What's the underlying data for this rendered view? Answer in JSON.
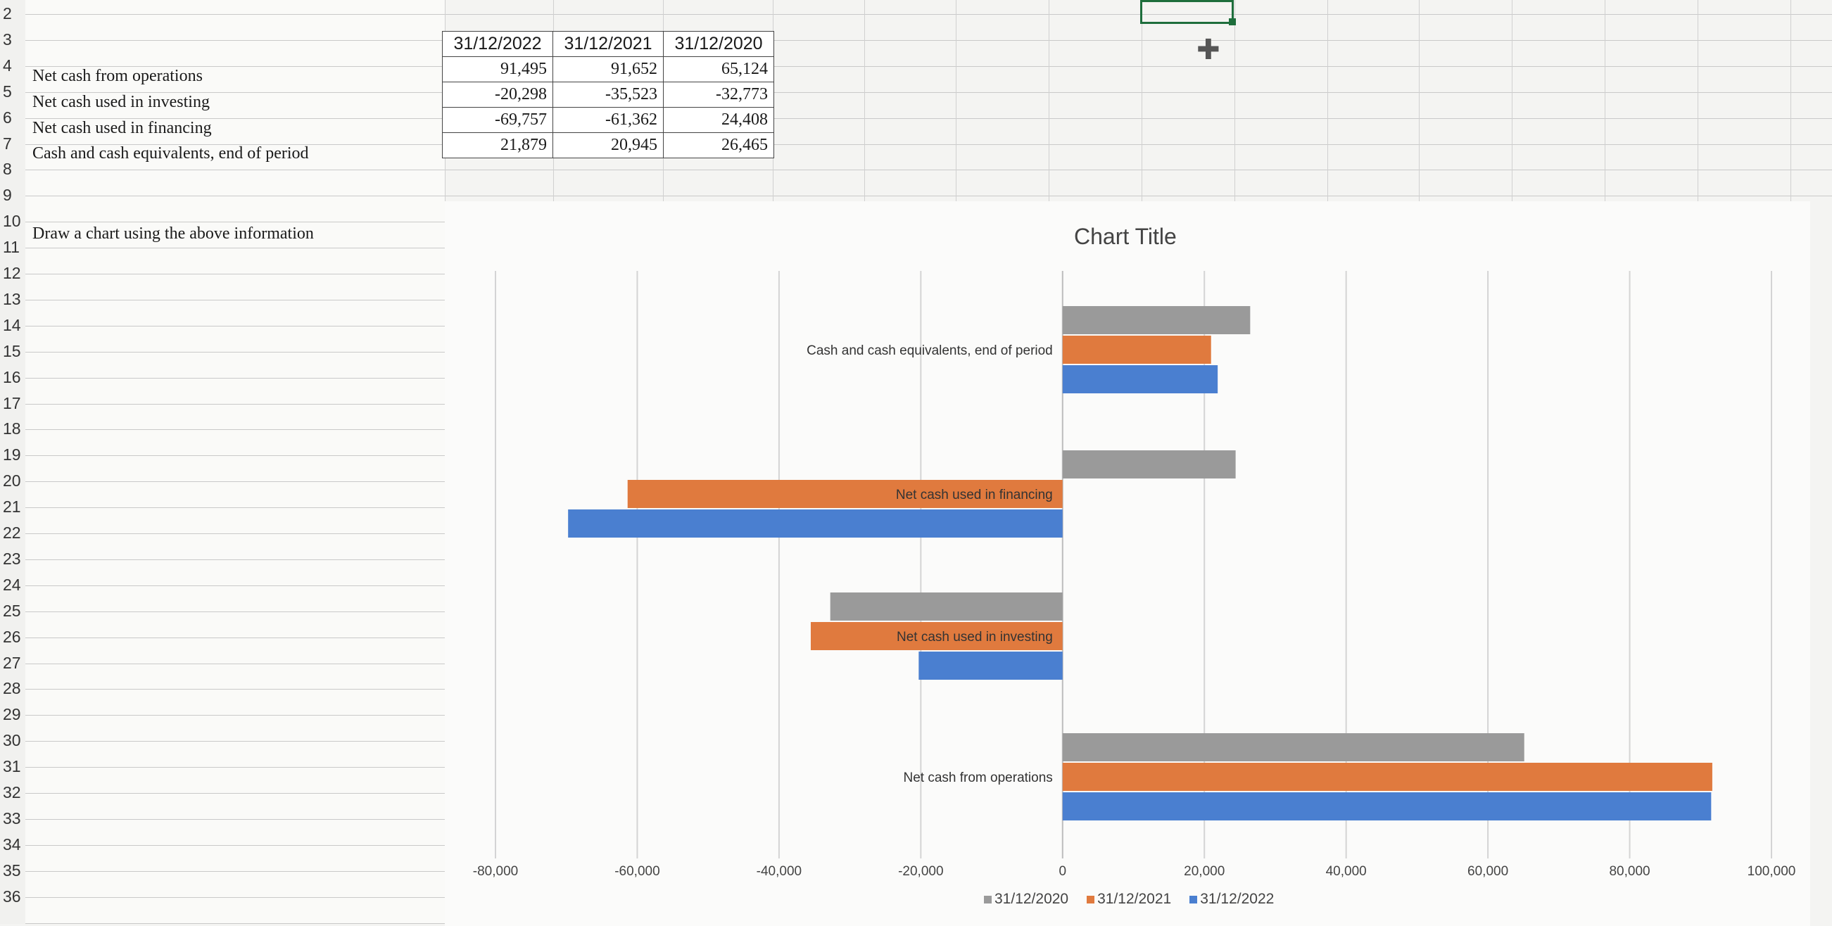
{
  "row_numbers": [
    "2",
    "3",
    "4",
    "5",
    "6",
    "7",
    "8",
    "9",
    "10",
    "11",
    "12",
    "13",
    "14",
    "15",
    "16",
    "17",
    "18",
    "19",
    "20",
    "21",
    "22",
    "23",
    "24",
    "25",
    "26",
    "27",
    "28",
    "29",
    "30",
    "31",
    "32",
    "33",
    "34",
    "35",
    "36"
  ],
  "cells": {
    "a4": "Net cash from operations",
    "a5": "Net cash used in investing",
    "a6": "Net cash used in financing",
    "a7": "Cash and cash equivalents, end of period",
    "a10": "Draw a chart using the above information"
  },
  "table": {
    "headers": [
      "31/12/2022",
      "31/12/2021",
      "31/12/2020"
    ],
    "rows": [
      [
        "91,495",
        "91,652",
        "65,124"
      ],
      [
        "-20,298",
        "-35,523",
        "-32,773"
      ],
      [
        "-69,757",
        "-61,362",
        "24,408"
      ],
      [
        "21,879",
        "20,945",
        "26,465"
      ]
    ]
  },
  "chart_data": {
    "type": "bar",
    "orientation": "horizontal",
    "title": "Chart Title",
    "categories": [
      "Net cash from operations",
      "Net cash used in investing",
      "Net cash used in financing",
      "Cash and cash equivalents, end of period"
    ],
    "series": [
      {
        "name": "31/12/2020",
        "color": "#9a9a9a",
        "values": [
          65124,
          -32773,
          24408,
          26465
        ]
      },
      {
        "name": "31/12/2021",
        "color": "#e07a3e",
        "values": [
          91652,
          -35523,
          -61362,
          20945
        ]
      },
      {
        "name": "31/12/2022",
        "color": "#4a7fd0",
        "values": [
          91495,
          -20298,
          -69757,
          21879
        ]
      }
    ],
    "xlim": [
      -80000,
      100000
    ],
    "xticks": [
      "-80,000",
      "-60,000",
      "-40,000",
      "-20,000",
      "0",
      "20,000",
      "40,000",
      "60,000",
      "80,000",
      "100,000"
    ],
    "grid": true,
    "legend": "bottom"
  }
}
